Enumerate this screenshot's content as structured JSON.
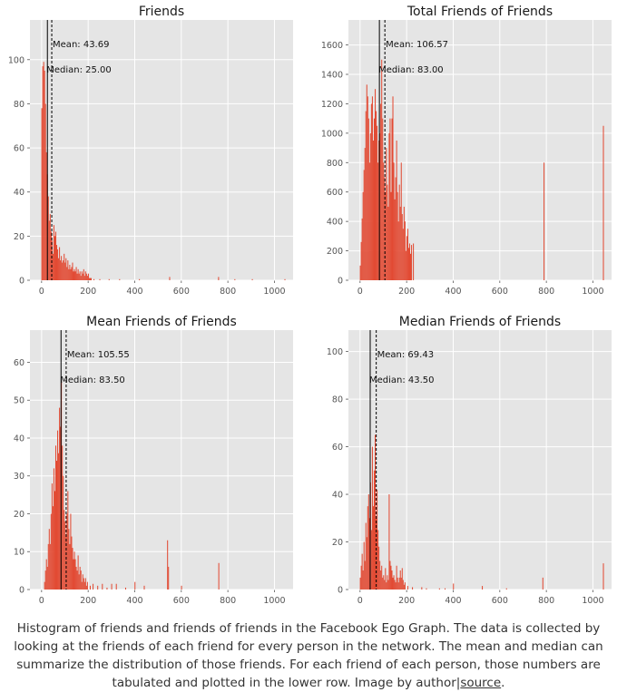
{
  "chart_data": [
    {
      "type": "bar",
      "title": "Friends",
      "xlim": [
        -50,
        1080
      ],
      "ylim": [
        0,
        118
      ],
      "xticks": [
        0,
        200,
        400,
        600,
        800,
        1000
      ],
      "yticks": [
        0,
        20,
        40,
        60,
        80,
        100
      ],
      "grid": true,
      "mean": 43.69,
      "median": 25.0,
      "mean_label": "Mean: 43.69",
      "median_label": "Median: 25.00",
      "bin_width": 4,
      "bins": [
        [
          1,
          78
        ],
        [
          5,
          97
        ],
        [
          9,
          99
        ],
        [
          13,
          95
        ],
        [
          17,
          80
        ],
        [
          21,
          58
        ],
        [
          25,
          48
        ],
        [
          29,
          38
        ],
        [
          33,
          27
        ],
        [
          37,
          30
        ],
        [
          41,
          22
        ],
        [
          45,
          18
        ],
        [
          49,
          12
        ],
        [
          53,
          25
        ],
        [
          57,
          20
        ],
        [
          61,
          22
        ],
        [
          65,
          16
        ],
        [
          69,
          14
        ],
        [
          73,
          10
        ],
        [
          77,
          15
        ],
        [
          81,
          9
        ],
        [
          85,
          11
        ],
        [
          89,
          8
        ],
        [
          93,
          9
        ],
        [
          97,
          12
        ],
        [
          101,
          8
        ],
        [
          105,
          10
        ],
        [
          109,
          6
        ],
        [
          113,
          9
        ],
        [
          117,
          5
        ],
        [
          121,
          7
        ],
        [
          125,
          5
        ],
        [
          129,
          6
        ],
        [
          133,
          8
        ],
        [
          137,
          4
        ],
        [
          141,
          5
        ],
        [
          145,
          4
        ],
        [
          149,
          6
        ],
        [
          153,
          3
        ],
        [
          157,
          5
        ],
        [
          161,
          3
        ],
        [
          165,
          4
        ],
        [
          169,
          2
        ],
        [
          173,
          4
        ],
        [
          177,
          3
        ],
        [
          181,
          5
        ],
        [
          185,
          2
        ],
        [
          189,
          4
        ],
        [
          193,
          3
        ],
        [
          197,
          2
        ],
        [
          201,
          3
        ],
        [
          205,
          1
        ],
        [
          209,
          1
        ],
        [
          213,
          1
        ],
        [
          225,
          0.5
        ],
        [
          250,
          0.5
        ],
        [
          290,
          0.5
        ],
        [
          335,
          0.5
        ],
        [
          420,
          0.5
        ],
        [
          550,
          1.5
        ],
        [
          760,
          1.5
        ],
        [
          830,
          0.5
        ],
        [
          905,
          0.5
        ],
        [
          1045,
          0.5
        ]
      ]
    },
    {
      "type": "bar",
      "title": "Total Friends of Friends",
      "xlim": [
        -50,
        1080
      ],
      "ylim": [
        0,
        1770
      ],
      "xticks": [
        0,
        200,
        400,
        600,
        800,
        1000
      ],
      "yticks": [
        0,
        200,
        400,
        600,
        800,
        1000,
        1200,
        1400,
        1600
      ],
      "grid": true,
      "mean": 106.57,
      "median": 83.0,
      "mean_label": "Mean: 106.57",
      "median_label": "Median: 83.00",
      "bin_width": 4,
      "bins": [
        [
          1,
          100
        ],
        [
          5,
          260
        ],
        [
          9,
          420
        ],
        [
          13,
          600
        ],
        [
          17,
          750
        ],
        [
          21,
          900
        ],
        [
          25,
          1150
        ],
        [
          29,
          1330
        ],
        [
          33,
          1250
        ],
        [
          37,
          1100
        ],
        [
          41,
          800
        ],
        [
          45,
          1000
        ],
        [
          49,
          1200
        ],
        [
          53,
          1250
        ],
        [
          57,
          950
        ],
        [
          61,
          1100
        ],
        [
          65,
          1300
        ],
        [
          69,
          1150
        ],
        [
          73,
          1050
        ],
        [
          77,
          800
        ],
        [
          81,
          950
        ],
        [
          85,
          1000
        ],
        [
          89,
          1200
        ],
        [
          93,
          1500
        ],
        [
          97,
          1100
        ],
        [
          101,
          800
        ],
        [
          105,
          700
        ],
        [
          109,
          600
        ],
        [
          113,
          900
        ],
        [
          117,
          650
        ],
        [
          121,
          500
        ],
        [
          125,
          1000
        ],
        [
          129,
          1100
        ],
        [
          133,
          600
        ],
        [
          137,
          1100
        ],
        [
          141,
          1250
        ],
        [
          145,
          800
        ],
        [
          149,
          550
        ],
        [
          153,
          700
        ],
        [
          157,
          950
        ],
        [
          161,
          600
        ],
        [
          165,
          400
        ],
        [
          169,
          650
        ],
        [
          173,
          500
        ],
        [
          177,
          800
        ],
        [
          181,
          450
        ],
        [
          185,
          350
        ],
        [
          189,
          500
        ],
        [
          193,
          400
        ],
        [
          197,
          200
        ],
        [
          201,
          300
        ],
        [
          205,
          350
        ],
        [
          209,
          220
        ],
        [
          213,
          250
        ],
        [
          217,
          180
        ],
        [
          221,
          240
        ],
        [
          229,
          250
        ],
        [
          790,
          800
        ],
        [
          1045,
          1050
        ]
      ]
    },
    {
      "type": "bar",
      "title": "Mean Friends of Friends",
      "xlim": [
        -50,
        1080
      ],
      "ylim": [
        0,
        68.5
      ],
      "xticks": [
        0,
        200,
        400,
        600,
        800,
        1000
      ],
      "yticks": [
        0,
        10,
        20,
        30,
        40,
        50,
        60
      ],
      "grid": true,
      "mean": 105.55,
      "median": 83.5,
      "mean_label": "Mean: 105.55",
      "median_label": "Median: 83.50",
      "bin_width": 4,
      "bins": [
        [
          13,
          2
        ],
        [
          17,
          5
        ],
        [
          21,
          8
        ],
        [
          25,
          6
        ],
        [
          29,
          12
        ],
        [
          33,
          16
        ],
        [
          37,
          12
        ],
        [
          41,
          20
        ],
        [
          45,
          28
        ],
        [
          49,
          22
        ],
        [
          53,
          32
        ],
        [
          57,
          26
        ],
        [
          61,
          38
        ],
        [
          65,
          34
        ],
        [
          69,
          42
        ],
        [
          73,
          36
        ],
        [
          77,
          48
        ],
        [
          81,
          43
        ],
        [
          85,
          55
        ],
        [
          89,
          38
        ],
        [
          93,
          30
        ],
        [
          97,
          21
        ],
        [
          101,
          18
        ],
        [
          105,
          14
        ],
        [
          109,
          20
        ],
        [
          113,
          26
        ],
        [
          117,
          16
        ],
        [
          121,
          12
        ],
        [
          125,
          20
        ],
        [
          129,
          14
        ],
        [
          133,
          11
        ],
        [
          137,
          8
        ],
        [
          141,
          10
        ],
        [
          145,
          8
        ],
        [
          149,
          6
        ],
        [
          153,
          5
        ],
        [
          157,
          9
        ],
        [
          161,
          4
        ],
        [
          165,
          6
        ],
        [
          169,
          5
        ],
        [
          173,
          2
        ],
        [
          177,
          4
        ],
        [
          181,
          3
        ],
        [
          185,
          2
        ],
        [
          189,
          3
        ],
        [
          193,
          1
        ],
        [
          197,
          2
        ],
        [
          209,
          1
        ],
        [
          221,
          1.5
        ],
        [
          241,
          1
        ],
        [
          261,
          1.5
        ],
        [
          281,
          0.5
        ],
        [
          301,
          1.5
        ],
        [
          321,
          1.5
        ],
        [
          361,
          0.5
        ],
        [
          401,
          2
        ],
        [
          441,
          1
        ],
        [
          541,
          13
        ],
        [
          545,
          6
        ],
        [
          601,
          1
        ],
        [
          761,
          7
        ]
      ]
    },
    {
      "type": "bar",
      "title": "Median Friends of Friends",
      "xlim": [
        -50,
        1080
      ],
      "ylim": [
        0,
        109
      ],
      "xticks": [
        0,
        200,
        400,
        600,
        800,
        1000
      ],
      "yticks": [
        0,
        20,
        40,
        60,
        80,
        100
      ],
      "grid": true,
      "mean": 69.43,
      "median": 43.5,
      "mean_label": "Mean: 69.43",
      "median_label": "Median: 43.50",
      "bin_width": 4,
      "bins": [
        [
          1,
          5
        ],
        [
          5,
          10
        ],
        [
          9,
          15
        ],
        [
          13,
          8
        ],
        [
          17,
          20
        ],
        [
          21,
          12
        ],
        [
          25,
          28
        ],
        [
          29,
          22
        ],
        [
          33,
          35
        ],
        [
          37,
          40
        ],
        [
          41,
          30
        ],
        [
          45,
          45
        ],
        [
          49,
          25
        ],
        [
          53,
          60
        ],
        [
          57,
          35
        ],
        [
          61,
          50
        ],
        [
          65,
          65
        ],
        [
          69,
          30
        ],
        [
          73,
          42
        ],
        [
          77,
          25
        ],
        [
          81,
          18
        ],
        [
          85,
          12
        ],
        [
          89,
          8
        ],
        [
          93,
          10
        ],
        [
          97,
          5
        ],
        [
          101,
          6
        ],
        [
          105,
          4
        ],
        [
          109,
          9
        ],
        [
          113,
          3
        ],
        [
          117,
          6
        ],
        [
          121,
          4
        ],
        [
          125,
          40
        ],
        [
          129,
          12
        ],
        [
          133,
          10
        ],
        [
          137,
          8
        ],
        [
          141,
          5
        ],
        [
          145,
          6
        ],
        [
          149,
          4
        ],
        [
          153,
          3
        ],
        [
          157,
          10
        ],
        [
          161,
          5
        ],
        [
          165,
          3
        ],
        [
          169,
          5
        ],
        [
          173,
          8
        ],
        [
          177,
          5
        ],
        [
          181,
          9
        ],
        [
          185,
          4
        ],
        [
          189,
          2
        ],
        [
          193,
          3
        ],
        [
          205,
          1.5
        ],
        [
          225,
          1
        ],
        [
          265,
          1
        ],
        [
          285,
          0.5
        ],
        [
          341,
          0.5
        ],
        [
          365,
          0.5
        ],
        [
          401,
          2.5
        ],
        [
          525,
          1.5
        ],
        [
          629,
          0.5
        ],
        [
          785,
          5
        ],
        [
          1045,
          11
        ]
      ]
    }
  ],
  "caption": {
    "text": "Histogram of friends and friends of friends in the Facebook Ego Graph. The data is collected by looking at the friends of each friend for every person in the network. The mean and median can summarize the distribution of those friends. For each friend of each person, those numbers are tabulated and plotted in the lower row. Image by author|",
    "link_text": "source",
    "end": "."
  },
  "colors": {
    "bar": "#E24A33",
    "panel_bg": "#E5E5E5",
    "grid": "#FFFFFF",
    "lines": "#000000"
  }
}
